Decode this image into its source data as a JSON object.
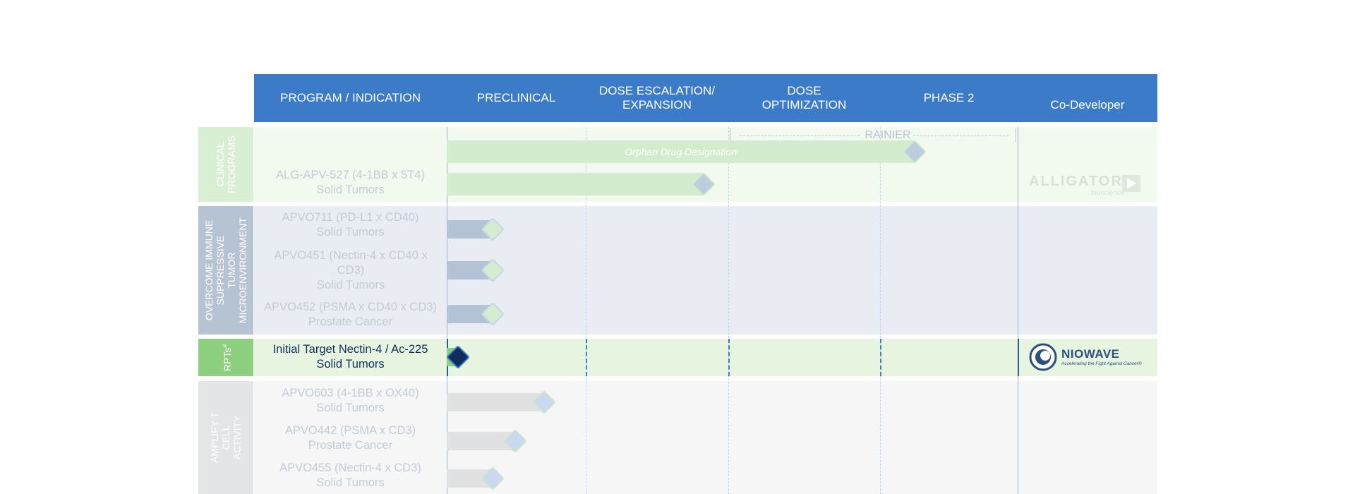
{
  "header": {
    "col_program": "PROGRAM / INDICATION",
    "col_preclinical": "PRECLINICAL",
    "col_dose_escalation": "DOSE ESCALATION/\nEXPANSION",
    "col_dose_optimization": "DOSE\nOPTIMIZATION",
    "col_phase2": "PHASE 2",
    "col_codeveloper": "Co-Developer"
  },
  "groups": {
    "clinical": "CLINICAL\nPROGRAMS",
    "overcome": "OVERCOME IMMUNE\nSUPPRESSIVE TUMOR\nMICROENVIRONMENT",
    "rpts": "RPTs",
    "rpts_sup": "#",
    "amplify": "AMPLIFY T CELL\nACTIVITY"
  },
  "annotations": {
    "rainier": "RAINIER",
    "orphan": "Orphan Drug Designation"
  },
  "programs": [
    {
      "name": "ALG-APV-527 (4-1BB x 5T4)",
      "indication": "Solid Tumors"
    },
    {
      "name": "APVO711 (PD-L1 x CD40)",
      "indication": "Solid Tumors"
    },
    {
      "name": "APVO451 (Nectin-4 x CD40 x CD3)",
      "indication": "Solid Tumors"
    },
    {
      "name": "APVO452 (PSMA x CD40 x CD3)",
      "indication": "Prostate Cancer"
    },
    {
      "name": "Initial Target Nectin-4 / Ac-225",
      "indication": "Solid Tumors"
    },
    {
      "name": "APVO603 (4-1BB x OX40)",
      "indication": "Solid Tumors"
    },
    {
      "name": "APVO442 (PSMA x CD3)",
      "indication": "Prostate Cancer"
    },
    {
      "name": "APVO455 (Nectin-4 x CD3)",
      "indication": "Solid Tumors"
    }
  ],
  "codevelopers": {
    "alligator_name": "ALLIGATOR",
    "alligator_sub": "bioscience",
    "niowave_name": "NIOWAVE",
    "niowave_tag": "Accelerating the Fight Against Cancer®"
  },
  "colors": {
    "header": "#3b7bc8",
    "clinical_band": "#f2f9ef",
    "clinical_bar": "#d4ecce",
    "overcome_band": "#e9edf3",
    "overcome_bar": "#b3c2d4",
    "rpt_band": "#e6f4e0",
    "amplify_band": "#f6f6f7",
    "amplify_bar": "#e0e1e3",
    "navy": "#102d5e"
  },
  "progress": {
    "orphan_bar_pct": 82,
    "alg_apv_527_pct": 45,
    "apvo711_pct": 8,
    "apvo451_pct": 8,
    "apvo452_pct": 8,
    "rpt_pct": 2,
    "apvo603_pct": 17,
    "apvo442_pct": 12,
    "apvo455_pct": 8
  }
}
